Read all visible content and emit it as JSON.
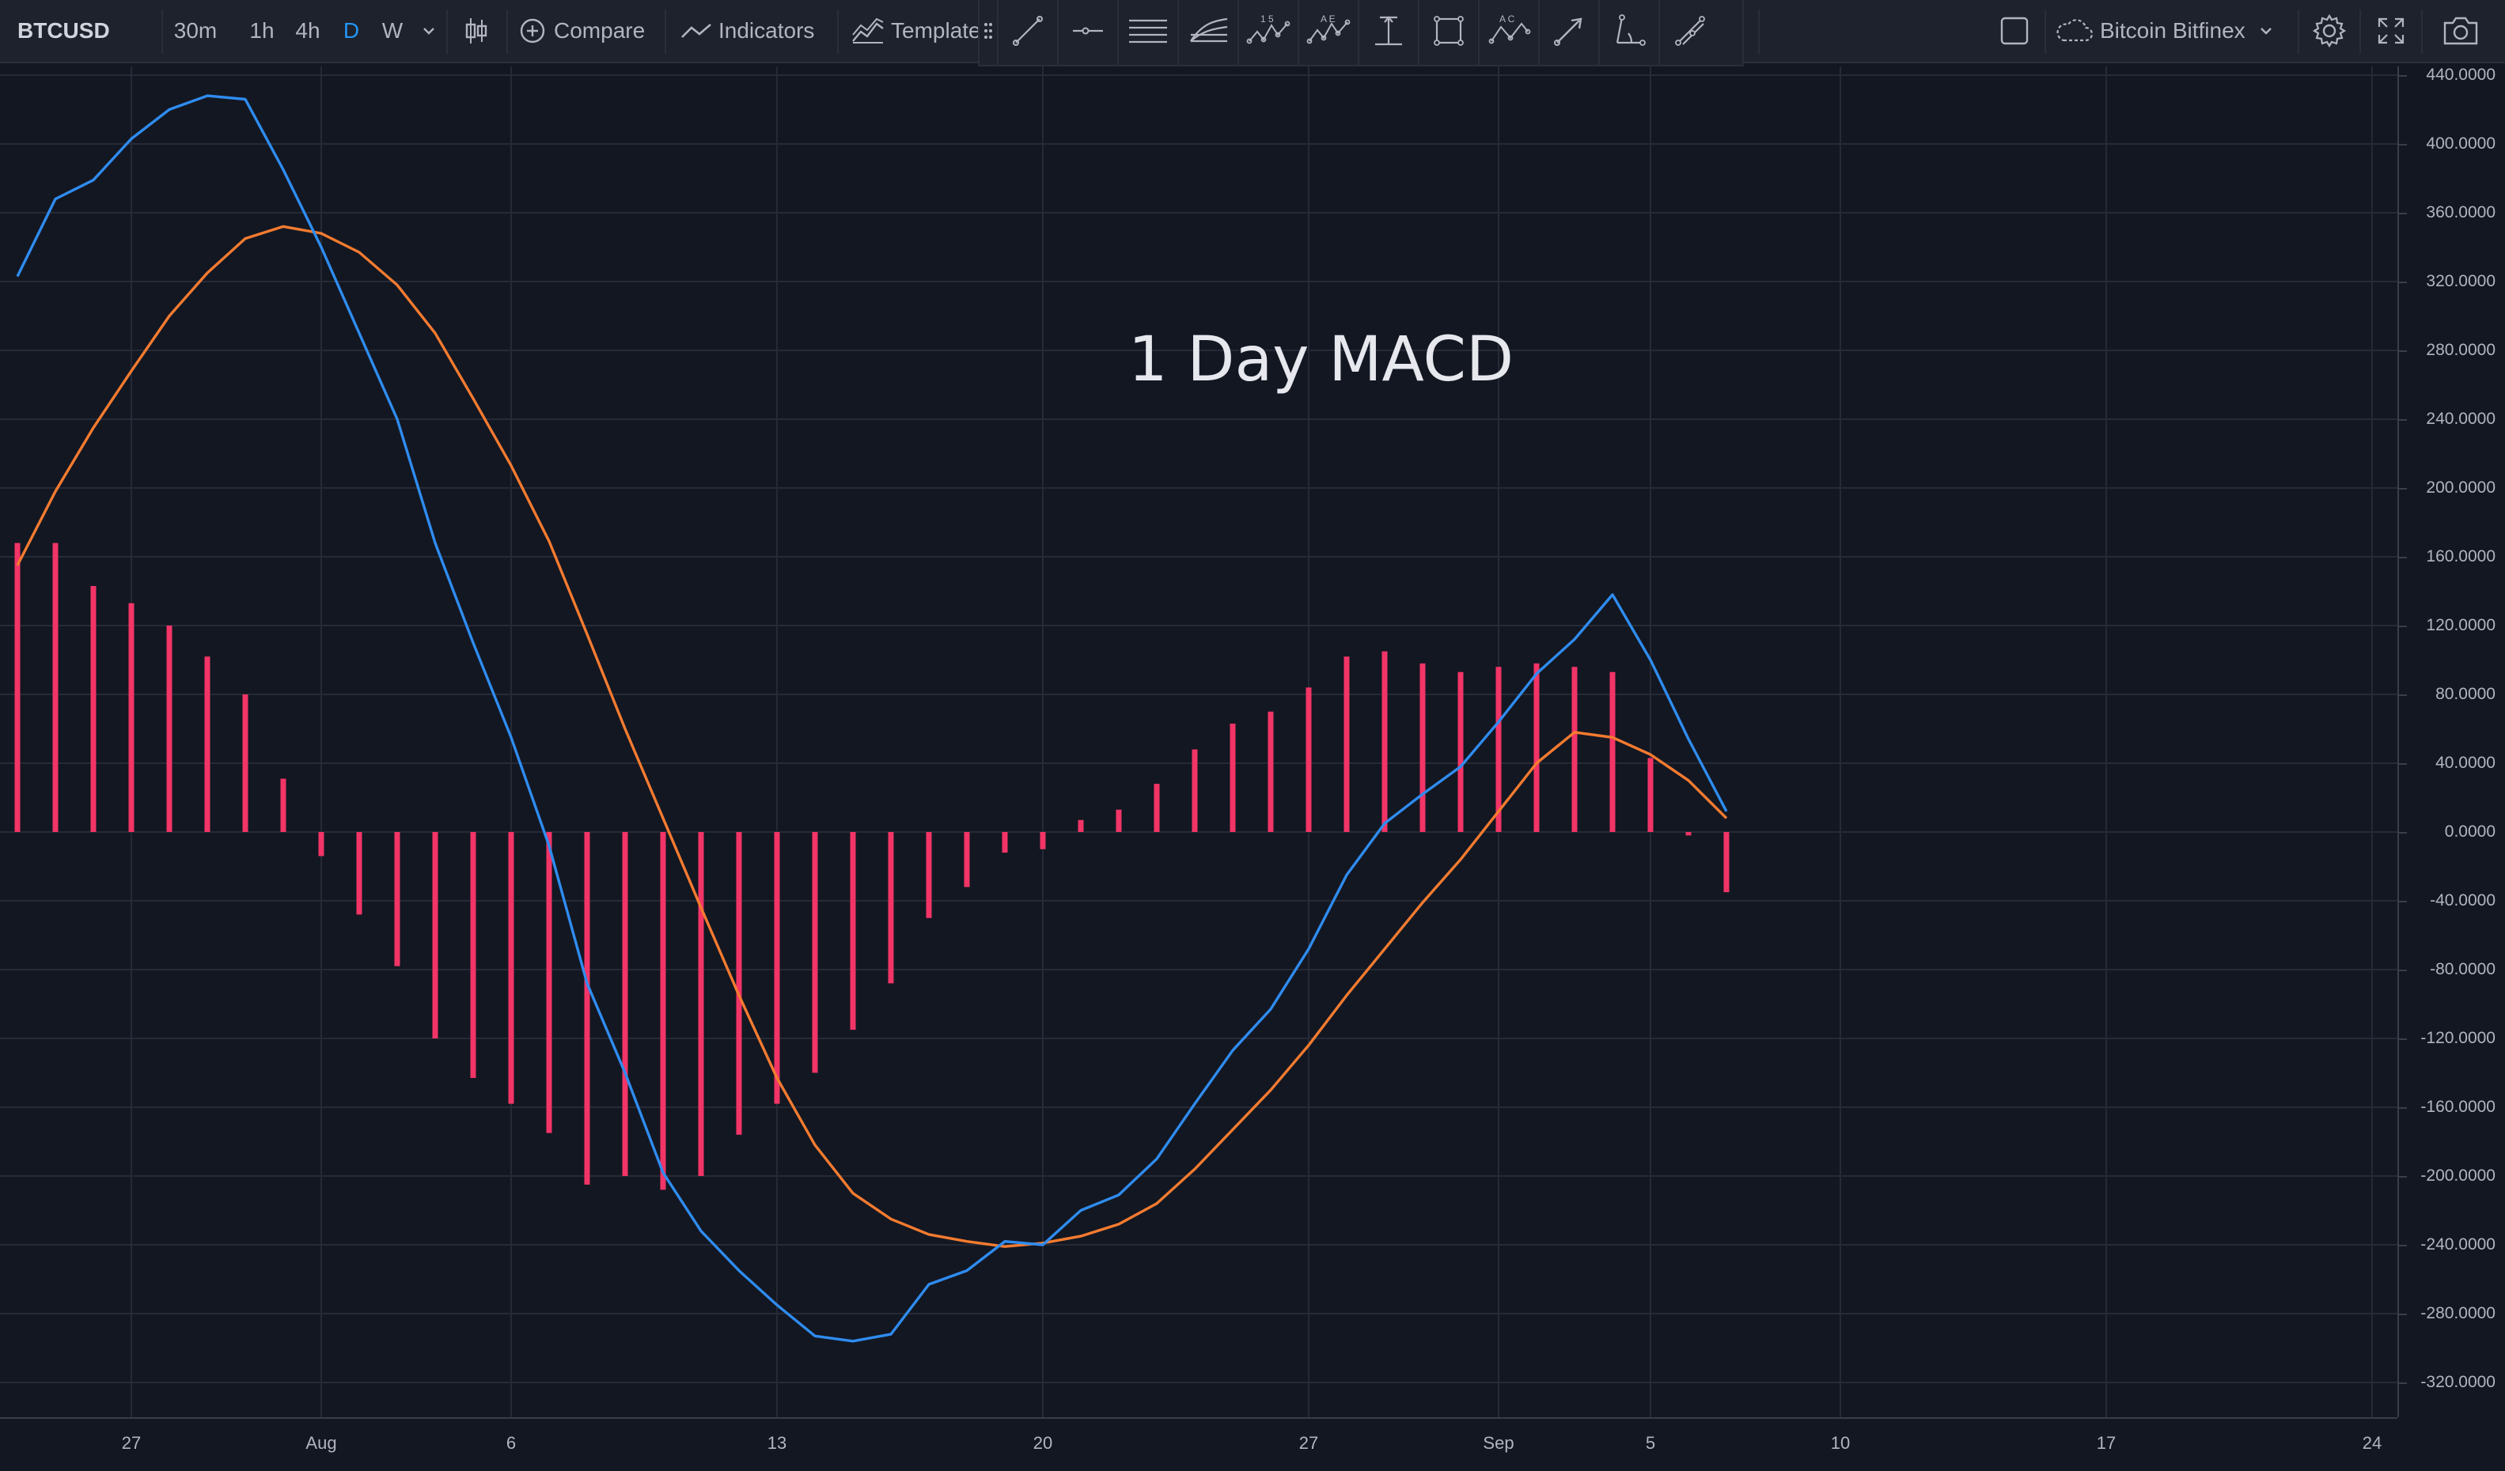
{
  "toolbar": {
    "symbol": "BTCUSD",
    "timeframes": [
      "30m",
      "1h",
      "4h",
      "D",
      "W"
    ],
    "active_timeframe": "D",
    "compare_label": "Compare",
    "indicators_label": "Indicators",
    "templates_label": "Template",
    "exchange_label": "Bitcoin Bitfinex"
  },
  "drawing_tools": [
    {
      "name": "trendline-tool-icon"
    },
    {
      "name": "horizontal-ray-tool-icon"
    },
    {
      "name": "parallel-lines-tool-icon"
    },
    {
      "name": "pitchfork-tool-icon"
    },
    {
      "name": "elliott-15-tool-icon",
      "caption": "1  5"
    },
    {
      "name": "elliott-ae-tool-icon",
      "caption": "A  E"
    },
    {
      "name": "date-price-range-tool-icon"
    },
    {
      "name": "rectangle-tool-icon"
    },
    {
      "name": "abc-pattern-tool-icon",
      "caption": "A  C"
    },
    {
      "name": "arrow-tool-icon"
    },
    {
      "name": "angle-tool-icon"
    },
    {
      "name": "brush-tool-icon"
    }
  ],
  "annotation": "1 Day MACD",
  "colors": {
    "macd_line": "#2f8cf0",
    "signal_line": "#f57b30",
    "histogram": "#f23467",
    "background": "#131722",
    "grid": "#262a36"
  },
  "chart_data": {
    "type": "line",
    "title": "1 Day MACD",
    "y_axis_ticks": [
      "440.0000",
      "400.0000",
      "360.0000",
      "320.0000",
      "280.0000",
      "240.0000",
      "200.0000",
      "160.0000",
      "120.0000",
      "80.0000",
      "40.0000",
      "0.0000",
      "-40.0000",
      "-80.0000",
      "-120.0000",
      "-160.0000",
      "-200.0000",
      "-240.0000",
      "-280.0000",
      "-320.0000"
    ],
    "ylim": [
      -320,
      440
    ],
    "x_axis_ticks": [
      {
        "label": "27",
        "day": 27
      },
      {
        "label": "Aug",
        "day": 32
      },
      {
        "label": "6",
        "day": 37
      },
      {
        "label": "13",
        "day": 44
      },
      {
        "label": "20",
        "day": 51
      },
      {
        "label": "27",
        "day": 58
      },
      {
        "label": "Sep",
        "day": 63
      },
      {
        "label": "5",
        "day": 67
      },
      {
        "label": "10",
        "day": 72
      },
      {
        "label": "17",
        "day": 79
      },
      {
        "label": "24",
        "day": 86
      }
    ],
    "x_unit": "day (July 1 = 1)",
    "xlim": [
      23.9,
      86.3
    ],
    "days": [
      24,
      25,
      26,
      27,
      28,
      29,
      30,
      31,
      32,
      33,
      34,
      35,
      36,
      37,
      38,
      39,
      40,
      41,
      42,
      43,
      44,
      45,
      46,
      47,
      48,
      49,
      50,
      51,
      52,
      53,
      54,
      55,
      56,
      57,
      58,
      59,
      60,
      61,
      62,
      63,
      64,
      65,
      66,
      67,
      68,
      69
    ],
    "series": [
      {
        "kind": "line",
        "values": [
          323,
          368,
          379,
          403,
          420,
          428,
          426,
          385,
          340,
          290,
          240,
          168,
          110,
          55,
          -8,
          -88,
          -140,
          -198,
          -232,
          -255,
          -275,
          -293,
          -296,
          -292,
          -263,
          -255,
          -238,
          -240,
          -220,
          -211,
          -190,
          -158,
          -127,
          -103,
          -68,
          -25,
          5,
          22,
          38,
          64,
          92,
          112,
          138,
          100,
          54,
          12
        ]
      },
      {
        "kind": "line",
        "values": [
          155,
          198,
          235,
          268,
          300,
          325,
          345,
          352,
          348,
          337,
          318,
          290,
          252,
          213,
          169,
          115,
          60,
          8,
          -44,
          -95,
          -143,
          -182,
          -210,
          -225,
          -234,
          -238,
          -241,
          -239,
          -235,
          -228,
          -216,
          -196,
          -173,
          -150,
          -124,
          -95,
          -68,
          -41,
          -16,
          12,
          40,
          58,
          55,
          45,
          30,
          8
        ]
      },
      {
        "kind": "histogram",
        "values": [
          168,
          168,
          143,
          133,
          120,
          102,
          80,
          31,
          -14,
          -48,
          -78,
          -120,
          -143,
          -158,
          -175,
          -205,
          -200,
          -208,
          -200,
          -176,
          -158,
          -140,
          -115,
          -88,
          -50,
          -32,
          -12,
          -10,
          7,
          13,
          28,
          48,
          63,
          70,
          84,
          102,
          105,
          98,
          93,
          96,
          98,
          96,
          93,
          43,
          -2,
          -35
        ]
      }
    ]
  }
}
